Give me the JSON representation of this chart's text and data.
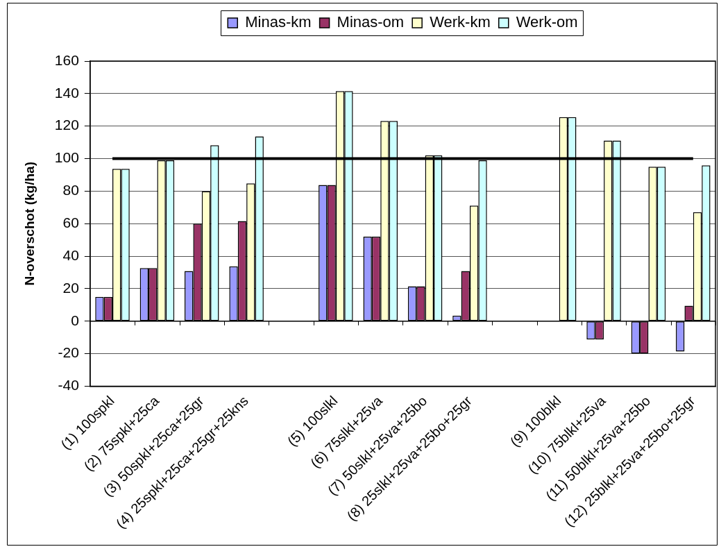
{
  "chart_data": {
    "type": "bar",
    "ylabel": "N-overschot (kg/ha)",
    "categories": [
      "(1) 100spkl",
      "(2) 75spkl+25ca",
      "(3) 50spkl+25ca+25gr",
      "(4) 25spkl+25ca+25gr+25kns",
      null,
      "(5) 100slkl",
      "(6) 75slkl+25va",
      "(7) 50slkl+25va+25bo",
      "(8) 25slkl+25va+25bo+25gr",
      null,
      "(9) 100blkl",
      "(10) 75blkl+25va",
      "(11) 50blkl+25va+25bo",
      "(12) 25blkl+25va+25bo+25gr"
    ],
    "series": [
      {
        "name": "Minas-km",
        "color": "#9999ff",
        "values": [
          15,
          32.7,
          30.9,
          33.7,
          null,
          83.8,
          52,
          21.5,
          3.4,
          null,
          null,
          -11.2,
          -20,
          -18.7
        ]
      },
      {
        "name": "Minas-om",
        "color": "#993366",
        "values": [
          15,
          32.7,
          60,
          61.6,
          null,
          83.8,
          52,
          21.5,
          30.9,
          null,
          null,
          -11.2,
          -20,
          9.5
        ]
      },
      {
        "name": "Werk-km",
        "color": "#ffffcc",
        "values": [
          93.7,
          99,
          80,
          84.8,
          null,
          141.5,
          123.2,
          102,
          71.1,
          null,
          125.5,
          111.1,
          95,
          67
        ]
      },
      {
        "name": "Werk-om",
        "color": "#ccffff",
        "values": [
          93.7,
          99,
          108.2,
          113.7,
          null,
          141.5,
          123.2,
          102,
          99,
          null,
          125.5,
          111.1,
          95,
          95.8
        ]
      }
    ],
    "ylim": [
      -40,
      160
    ],
    "yticks": [
      -40,
      -20,
      0,
      20,
      40,
      60,
      80,
      100,
      120,
      140,
      160
    ],
    "grid": "y",
    "legend": "top",
    "ref_lines": [
      {
        "axis": "y",
        "value": 100,
        "color": "#000000"
      }
    ]
  }
}
